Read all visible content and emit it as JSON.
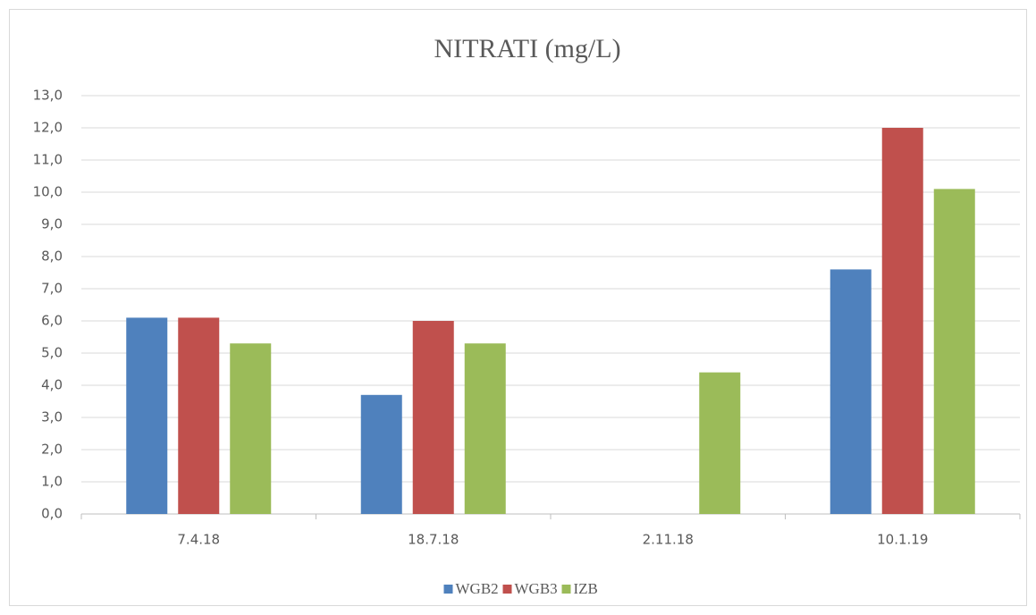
{
  "chart_data": {
    "type": "bar",
    "title": "NITRATI (mg/L)",
    "categories": [
      "7.4.18",
      "18.7.18",
      "2.11.18",
      "10.1.19"
    ],
    "series": [
      {
        "name": "WGB2",
        "color": "#4f81bd",
        "values": [
          6.1,
          3.7,
          null,
          7.6
        ]
      },
      {
        "name": "WGB3",
        "color": "#c0504d",
        "values": [
          6.1,
          6.0,
          null,
          12.0
        ]
      },
      {
        "name": "IZB",
        "color": "#9bbb59",
        "values": [
          5.3,
          5.3,
          4.4,
          10.1
        ]
      }
    ],
    "ylim": [
      0,
      13
    ],
    "yticks": [
      {
        "value": 0,
        "label": "0,0"
      },
      {
        "value": 1,
        "label": "1,0"
      },
      {
        "value": 2,
        "label": "2,0"
      },
      {
        "value": 3,
        "label": "3,0"
      },
      {
        "value": 4,
        "label": "4,0"
      },
      {
        "value": 5,
        "label": "5,0"
      },
      {
        "value": 6,
        "label": "6,0"
      },
      {
        "value": 7,
        "label": "7,0"
      },
      {
        "value": 8,
        "label": "8,0"
      },
      {
        "value": 9,
        "label": "9,0"
      },
      {
        "value": 10,
        "label": "10,0"
      },
      {
        "value": 11,
        "label": "11,0"
      },
      {
        "value": 12,
        "label": "12,0"
      },
      {
        "value": 13,
        "label": "13,0"
      }
    ],
    "grid": true,
    "legend": "bottom"
  }
}
